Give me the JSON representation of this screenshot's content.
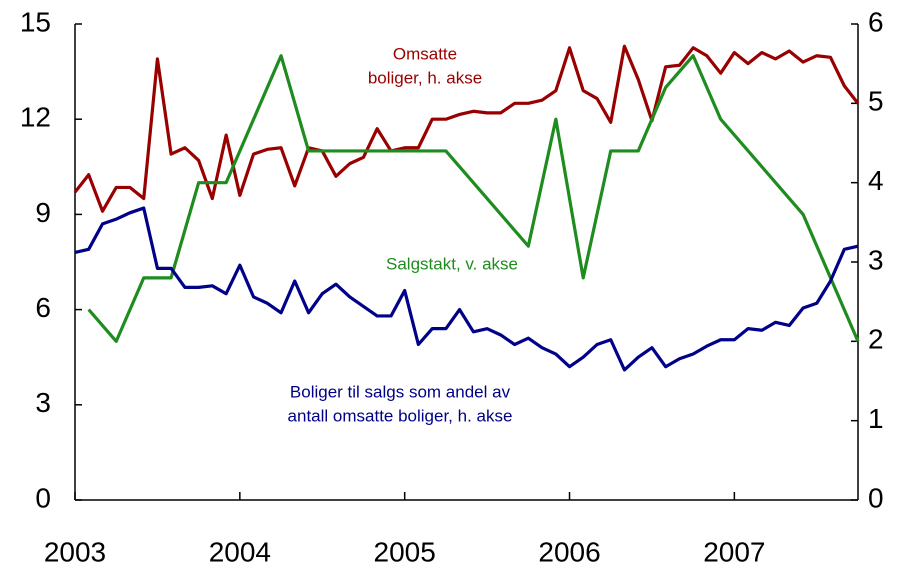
{
  "chart_data": {
    "type": "line",
    "x": [
      2003,
      2003.083,
      2003.167,
      2003.25,
      2003.333,
      2003.417,
      2003.5,
      2003.583,
      2003.667,
      2003.75,
      2003.833,
      2003.917,
      2004,
      2004.083,
      2004.167,
      2004.25,
      2004.333,
      2004.417,
      2004.5,
      2004.583,
      2004.667,
      2004.75,
      2004.833,
      2004.917,
      2005,
      2005.083,
      2005.167,
      2005.25,
      2005.333,
      2005.417,
      2005.5,
      2005.583,
      2005.667,
      2005.75,
      2005.833,
      2005.917,
      2006,
      2006.083,
      2006.167,
      2006.25,
      2006.333,
      2006.417,
      2006.5,
      2006.583,
      2006.667,
      2006.75,
      2006.833,
      2006.917,
      2007,
      2007.083,
      2007.167,
      2007.25,
      2007.333,
      2007.417,
      2007.5,
      2007.583,
      2007.667,
      2007.75
    ],
    "xlim": [
      2003,
      2007.75
    ],
    "xticks": [
      2003,
      2004,
      2005,
      2006,
      2007
    ],
    "ylim": [
      0,
      15
    ],
    "yticks": [
      0,
      3,
      6,
      9,
      12,
      15
    ],
    "y2lim": [
      0,
      6
    ],
    "y2ticks": [
      0,
      1,
      2,
      3,
      4,
      5,
      6
    ],
    "series": [
      {
        "label_lines": [
          "Omsatte",
          "boliger, h. akse"
        ],
        "color": "#990000",
        "axis": "y2",
        "values": [
          3.88,
          4.1,
          3.64,
          3.94,
          3.94,
          3.8,
          5.56,
          4.36,
          4.44,
          4.28,
          3.8,
          4.6,
          3.84,
          4.36,
          4.42,
          4.44,
          3.96,
          4.44,
          4.4,
          4.08,
          4.24,
          4.32,
          4.68,
          4.4,
          4.44,
          4.44,
          4.8,
          4.8,
          4.86,
          4.9,
          4.88,
          4.88,
          5.0,
          5.0,
          5.04,
          5.16,
          5.7,
          5.16,
          5.06,
          4.76,
          5.72,
          5.3,
          4.78,
          5.46,
          5.48,
          5.7,
          5.6,
          5.38,
          5.64,
          5.5,
          5.64,
          5.56,
          5.66,
          5.52,
          5.6,
          5.58,
          5.22,
          5.0
        ]
      },
      {
        "label_lines": [
          "Salgstakt, v. akse"
        ],
        "color": "#1e8c1e",
        "x": [
          2003.083,
          2003.25,
          2003.417,
          2003.583,
          2003.75,
          2003.917,
          2004.25,
          2004.417,
          2005.25,
          2005.75,
          2005.917,
          2006.083,
          2006.25,
          2006.417,
          2006.583,
          2006.75,
          2006.917,
          2007.417,
          2007.75
        ],
        "values": [
          6,
          5,
          7,
          7,
          10,
          10,
          14,
          11,
          11,
          8,
          12,
          7,
          11,
          11,
          13,
          14,
          12,
          9,
          5
        ]
      },
      {
        "label_lines": [
          "Boliger til salgs som andel av",
          "antall omsatte boliger, h. akse"
        ],
        "color": "#000088",
        "axis": "y2",
        "values": [
          3.12,
          3.16,
          3.48,
          3.54,
          3.62,
          3.68,
          2.92,
          2.92,
          2.68,
          2.68,
          2.7,
          2.6,
          2.96,
          2.56,
          2.48,
          2.36,
          2.76,
          2.36,
          2.6,
          2.72,
          2.56,
          2.44,
          2.32,
          2.32,
          2.64,
          1.96,
          2.16,
          2.16,
          2.4,
          2.12,
          2.16,
          2.08,
          1.96,
          2.04,
          1.92,
          1.84,
          1.68,
          1.8,
          1.96,
          2.02,
          1.64,
          1.8,
          1.92,
          1.68,
          1.78,
          1.84,
          1.94,
          2.02,
          2.02,
          2.16,
          2.14,
          2.24,
          2.2,
          2.42,
          2.48,
          2.76,
          3.16,
          3.2
        ]
      }
    ]
  }
}
